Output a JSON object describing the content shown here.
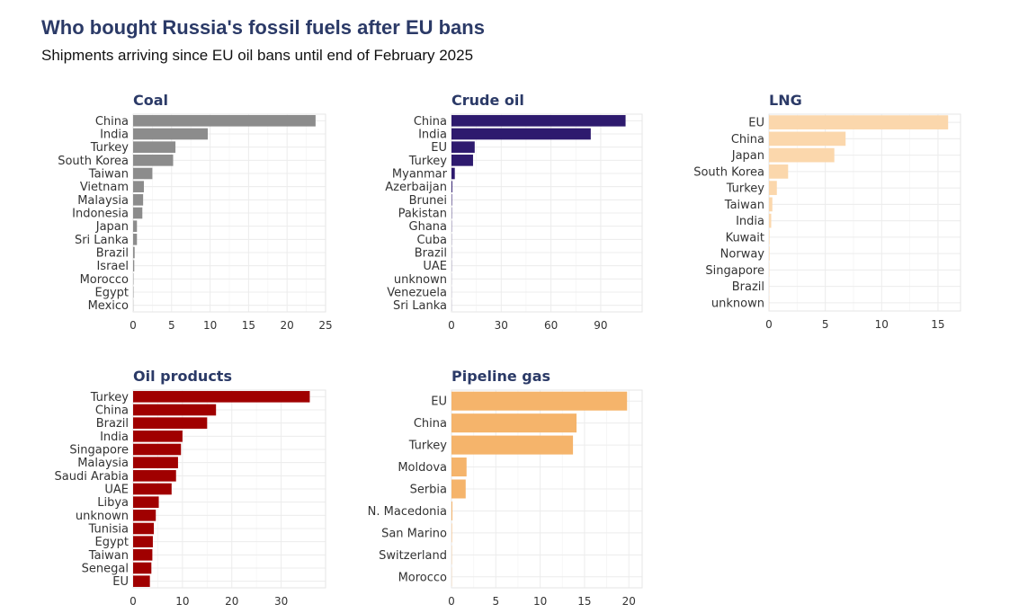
{
  "header": {
    "title": "Who bought Russia's fossil fuels after EU bans",
    "subtitle": "Shipments arriving since EU oil bans until end of February 2025"
  },
  "chart_data": [
    {
      "type": "bar",
      "orientation": "horizontal",
      "title": "Coal",
      "color": "#8c8c8c",
      "categories": [
        "China",
        "India",
        "Turkey",
        "South Korea",
        "Taiwan",
        "Vietnam",
        "Malaysia",
        "Indonesia",
        "Japan",
        "Sri Lanka",
        "Brazil",
        "Israel",
        "Morocco",
        "Egypt",
        "Mexico"
      ],
      "values": [
        23.7,
        9.7,
        5.5,
        5.2,
        2.5,
        1.4,
        1.3,
        1.2,
        0.5,
        0.5,
        0.2,
        0.15,
        0.05,
        0.05,
        0.02
      ],
      "xlim": [
        0,
        25
      ],
      "xticks": [
        0,
        5,
        10,
        15,
        20,
        25
      ]
    },
    {
      "type": "bar",
      "orientation": "horizontal",
      "title": "Crude oil",
      "color": "#2e1a6e",
      "categories": [
        "China",
        "India",
        "EU",
        "Turkey",
        "Myanmar",
        "Azerbaijan",
        "Brunei",
        "Pakistan",
        "Ghana",
        "Cuba",
        "Brazil",
        "UAE",
        "unknown",
        "Venezuela",
        "Sri Lanka"
      ],
      "values": [
        105,
        84,
        14,
        13,
        2,
        0.5,
        0.3,
        0.2,
        0.15,
        0.1,
        0.1,
        0.1,
        0.05,
        0.05,
        0.05
      ],
      "xlim": [
        0,
        115
      ],
      "xticks": [
        0,
        30,
        60,
        90
      ]
    },
    {
      "type": "bar",
      "orientation": "horizontal",
      "title": "LNG",
      "color": "#fbd7ac",
      "categories": [
        "EU",
        "China",
        "Japan",
        "South Korea",
        "Turkey",
        "Taiwan",
        "India",
        "Kuwait",
        "Norway",
        "Singapore",
        "Brazil",
        "unknown"
      ],
      "values": [
        15.9,
        6.8,
        5.8,
        1.7,
        0.7,
        0.3,
        0.2,
        0.05,
        0.05,
        0.03,
        0.02,
        0.02
      ],
      "xlim": [
        0,
        17
      ],
      "xticks": [
        0,
        5,
        10,
        15
      ]
    },
    {
      "type": "bar",
      "orientation": "horizontal",
      "title": "Oil products",
      "color": "#a00000",
      "categories": [
        "Turkey",
        "China",
        "Brazil",
        "India",
        "Singapore",
        "Malaysia",
        "Saudi Arabia",
        "UAE",
        "Libya",
        "unknown",
        "Tunisia",
        "Egypt",
        "Taiwan",
        "Senegal",
        "EU"
      ],
      "values": [
        35.8,
        16.8,
        15,
        10,
        9.7,
        9.1,
        8.7,
        7.8,
        5.2,
        4.6,
        4.2,
        4.0,
        3.9,
        3.7,
        3.4
      ],
      "xlim": [
        0,
        39
      ],
      "xticks": [
        0,
        10,
        20,
        30
      ]
    },
    {
      "type": "bar",
      "orientation": "horizontal",
      "title": "Pipeline gas",
      "color": "#f5b46b",
      "categories": [
        "EU",
        "China",
        "Turkey",
        "Moldova",
        "Serbia",
        "N. Macedonia",
        "San Marino",
        "Switzerland",
        "Morocco"
      ],
      "values": [
        19.8,
        14.1,
        13.7,
        1.7,
        1.6,
        0.1,
        0.05,
        0.03,
        0.02
      ],
      "xlim": [
        0,
        21.5
      ],
      "xticks": [
        0,
        5,
        10,
        15,
        20
      ]
    }
  ]
}
